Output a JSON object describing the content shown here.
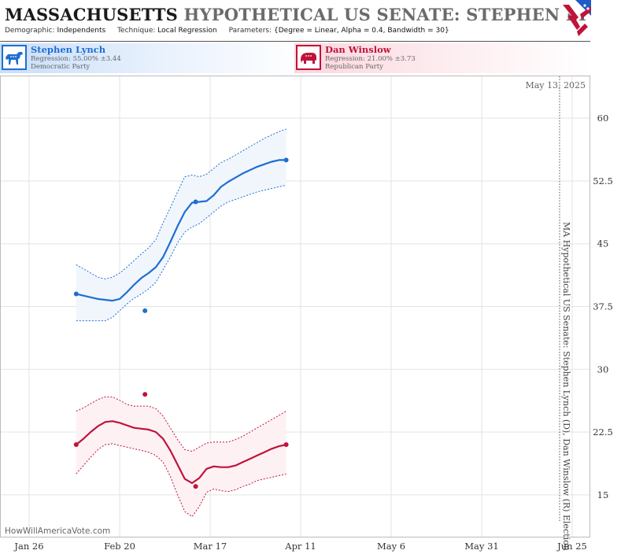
{
  "header": {
    "title_state": "MASSACHUSETTS",
    "title_rest": "HYPOTHETICAL US SENATE: STEPHEN LYNCH",
    "demographic_key": "Demographic:",
    "demographic_value": "Independents",
    "technique_key": "Technique:",
    "technique_value": "Local Regression",
    "parameters_key": "Parameters:",
    "parameters_value": "{Degree = Linear, Alpha = 0.4, Bandwidth = 30}"
  },
  "candidates": {
    "dem": {
      "name": "Stephen Lynch",
      "regression": "Regression: 55.00% ±3.44",
      "party": "Democratic Party",
      "color": "#1e6fd0",
      "icon": "donkey-icon"
    },
    "rep": {
      "name": "Dan Winslow",
      "regression": "Regression: 21.00% ±3.73",
      "party": "Republican Party",
      "color": "#c0133a",
      "icon": "elephant-icon"
    }
  },
  "chart_data": {
    "type": "line",
    "date_annotation": "May 13, 2025",
    "vertical_label": "MA Hypothetical US Senate: Stephen Lynch (D), Dan Winslow (R) Election",
    "watermark": "HowWillAmericaVote.com",
    "x_ticks": [
      "Jan 26",
      "Feb 20",
      "Mar 17",
      "Apr 11",
      "May 6",
      "May 31",
      "Jun 25"
    ],
    "y_ticks": [
      15,
      22.5,
      30,
      37.5,
      45,
      52.5,
      60
    ],
    "ylim": [
      10,
      65
    ],
    "grid": true,
    "series": [
      {
        "name": "Stephen Lynch",
        "color": "#1e6fd0",
        "fill": "#f1f6fd",
        "points": [
          [
            13,
            39
          ],
          [
            32,
            37
          ],
          [
            46,
            50
          ],
          [
            71,
            55
          ]
        ],
        "fit": [
          [
            13,
            39
          ],
          [
            15,
            38.8
          ],
          [
            17,
            38.6
          ],
          [
            19,
            38.4
          ],
          [
            21,
            38.3
          ],
          [
            23,
            38.2
          ],
          [
            25,
            38.4
          ],
          [
            27,
            39.2
          ],
          [
            29,
            40.1
          ],
          [
            31,
            40.9
          ],
          [
            33,
            41.5
          ],
          [
            35,
            42.2
          ],
          [
            37,
            43.4
          ],
          [
            39,
            45.2
          ],
          [
            41,
            47.1
          ],
          [
            43,
            48.8
          ],
          [
            45,
            49.9
          ],
          [
            47,
            50.0
          ],
          [
            49,
            50.1
          ],
          [
            51,
            50.8
          ],
          [
            53,
            51.8
          ],
          [
            55,
            52.4
          ],
          [
            57,
            52.9
          ],
          [
            59,
            53.4
          ],
          [
            61,
            53.8
          ],
          [
            63,
            54.2
          ],
          [
            65,
            54.5
          ],
          [
            67,
            54.8
          ],
          [
            69,
            55.0
          ],
          [
            71,
            55.0
          ]
        ],
        "upper": [
          [
            13,
            42.5
          ],
          [
            15,
            42.0
          ],
          [
            17,
            41.5
          ],
          [
            19,
            41.0
          ],
          [
            21,
            40.8
          ],
          [
            23,
            41.0
          ],
          [
            25,
            41.5
          ],
          [
            27,
            42.2
          ],
          [
            29,
            43.0
          ],
          [
            31,
            43.8
          ],
          [
            33,
            44.5
          ],
          [
            35,
            45.5
          ],
          [
            37,
            47.5
          ],
          [
            39,
            49.3
          ],
          [
            41,
            51.2
          ],
          [
            43,
            53.0
          ],
          [
            45,
            53.2
          ],
          [
            47,
            53.0
          ],
          [
            49,
            53.3
          ],
          [
            51,
            54.0
          ],
          [
            53,
            54.7
          ],
          [
            55,
            55.1
          ],
          [
            57,
            55.6
          ],
          [
            59,
            56.1
          ],
          [
            61,
            56.6
          ],
          [
            63,
            57.1
          ],
          [
            65,
            57.6
          ],
          [
            67,
            58.0
          ],
          [
            69,
            58.4
          ],
          [
            71,
            58.7
          ]
        ],
        "lower": [
          [
            13,
            35.8
          ],
          [
            15,
            35.8
          ],
          [
            17,
            35.8
          ],
          [
            19,
            35.8
          ],
          [
            21,
            35.8
          ],
          [
            23,
            36.2
          ],
          [
            25,
            37.0
          ],
          [
            27,
            37.8
          ],
          [
            29,
            38.5
          ],
          [
            31,
            39.0
          ],
          [
            33,
            39.6
          ],
          [
            35,
            40.4
          ],
          [
            37,
            41.9
          ],
          [
            39,
            43.4
          ],
          [
            41,
            45.1
          ],
          [
            43,
            46.4
          ],
          [
            45,
            47.0
          ],
          [
            47,
            47.4
          ],
          [
            49,
            48.1
          ],
          [
            51,
            48.8
          ],
          [
            53,
            49.5
          ],
          [
            55,
            50.0
          ],
          [
            57,
            50.3
          ],
          [
            59,
            50.6
          ],
          [
            61,
            50.9
          ],
          [
            63,
            51.2
          ],
          [
            65,
            51.4
          ],
          [
            67,
            51.6
          ],
          [
            69,
            51.8
          ],
          [
            71,
            52.0
          ]
        ]
      },
      {
        "name": "Dan Winslow",
        "color": "#c0133a",
        "fill": "#fdf1f4",
        "points": [
          [
            13,
            21
          ],
          [
            32,
            27
          ],
          [
            46,
            16
          ],
          [
            71,
            21
          ]
        ],
        "fit": [
          [
            13,
            21
          ],
          [
            15,
            21.7
          ],
          [
            17,
            22.5
          ],
          [
            19,
            23.2
          ],
          [
            21,
            23.7
          ],
          [
            23,
            23.8
          ],
          [
            25,
            23.6
          ],
          [
            27,
            23.3
          ],
          [
            29,
            23.0
          ],
          [
            31,
            22.9
          ],
          [
            33,
            22.8
          ],
          [
            35,
            22.5
          ],
          [
            37,
            21.7
          ],
          [
            39,
            20.3
          ],
          [
            41,
            18.6
          ],
          [
            43,
            16.9
          ],
          [
            45,
            16.4
          ],
          [
            47,
            17.0
          ],
          [
            49,
            18.1
          ],
          [
            51,
            18.4
          ],
          [
            53,
            18.3
          ],
          [
            55,
            18.3
          ],
          [
            57,
            18.5
          ],
          [
            59,
            18.9
          ],
          [
            61,
            19.3
          ],
          [
            63,
            19.7
          ],
          [
            65,
            20.1
          ],
          [
            67,
            20.5
          ],
          [
            69,
            20.8
          ],
          [
            71,
            21.0
          ]
        ],
        "upper": [
          [
            13,
            25.0
          ],
          [
            15,
            25.4
          ],
          [
            17,
            25.9
          ],
          [
            19,
            26.4
          ],
          [
            21,
            26.7
          ],
          [
            23,
            26.7
          ],
          [
            25,
            26.3
          ],
          [
            27,
            25.8
          ],
          [
            29,
            25.6
          ],
          [
            31,
            25.6
          ],
          [
            33,
            25.6
          ],
          [
            35,
            25.3
          ],
          [
            37,
            24.4
          ],
          [
            39,
            23.0
          ],
          [
            41,
            21.6
          ],
          [
            43,
            20.4
          ],
          [
            45,
            20.2
          ],
          [
            47,
            20.7
          ],
          [
            49,
            21.2
          ],
          [
            51,
            21.3
          ],
          [
            53,
            21.3
          ],
          [
            55,
            21.3
          ],
          [
            57,
            21.6
          ],
          [
            59,
            22.0
          ],
          [
            61,
            22.5
          ],
          [
            63,
            23.0
          ],
          [
            65,
            23.5
          ],
          [
            67,
            24.0
          ],
          [
            69,
            24.5
          ],
          [
            71,
            25.0
          ]
        ],
        "lower": [
          [
            13,
            17.5
          ],
          [
            15,
            18.5
          ],
          [
            17,
            19.5
          ],
          [
            19,
            20.4
          ],
          [
            21,
            21.0
          ],
          [
            23,
            21.1
          ],
          [
            25,
            20.9
          ],
          [
            27,
            20.7
          ],
          [
            29,
            20.5
          ],
          [
            31,
            20.3
          ],
          [
            33,
            20.1
          ],
          [
            35,
            19.7
          ],
          [
            37,
            18.9
          ],
          [
            39,
            17.2
          ],
          [
            41,
            15.0
          ],
          [
            43,
            13.0
          ],
          [
            45,
            12.4
          ],
          [
            47,
            13.6
          ],
          [
            49,
            15.3
          ],
          [
            51,
            15.7
          ],
          [
            53,
            15.5
          ],
          [
            55,
            15.4
          ],
          [
            57,
            15.6
          ],
          [
            59,
            16.0
          ],
          [
            61,
            16.3
          ],
          [
            63,
            16.7
          ],
          [
            65,
            16.9
          ],
          [
            67,
            17.1
          ],
          [
            69,
            17.3
          ],
          [
            71,
            17.5
          ]
        ]
      }
    ]
  }
}
